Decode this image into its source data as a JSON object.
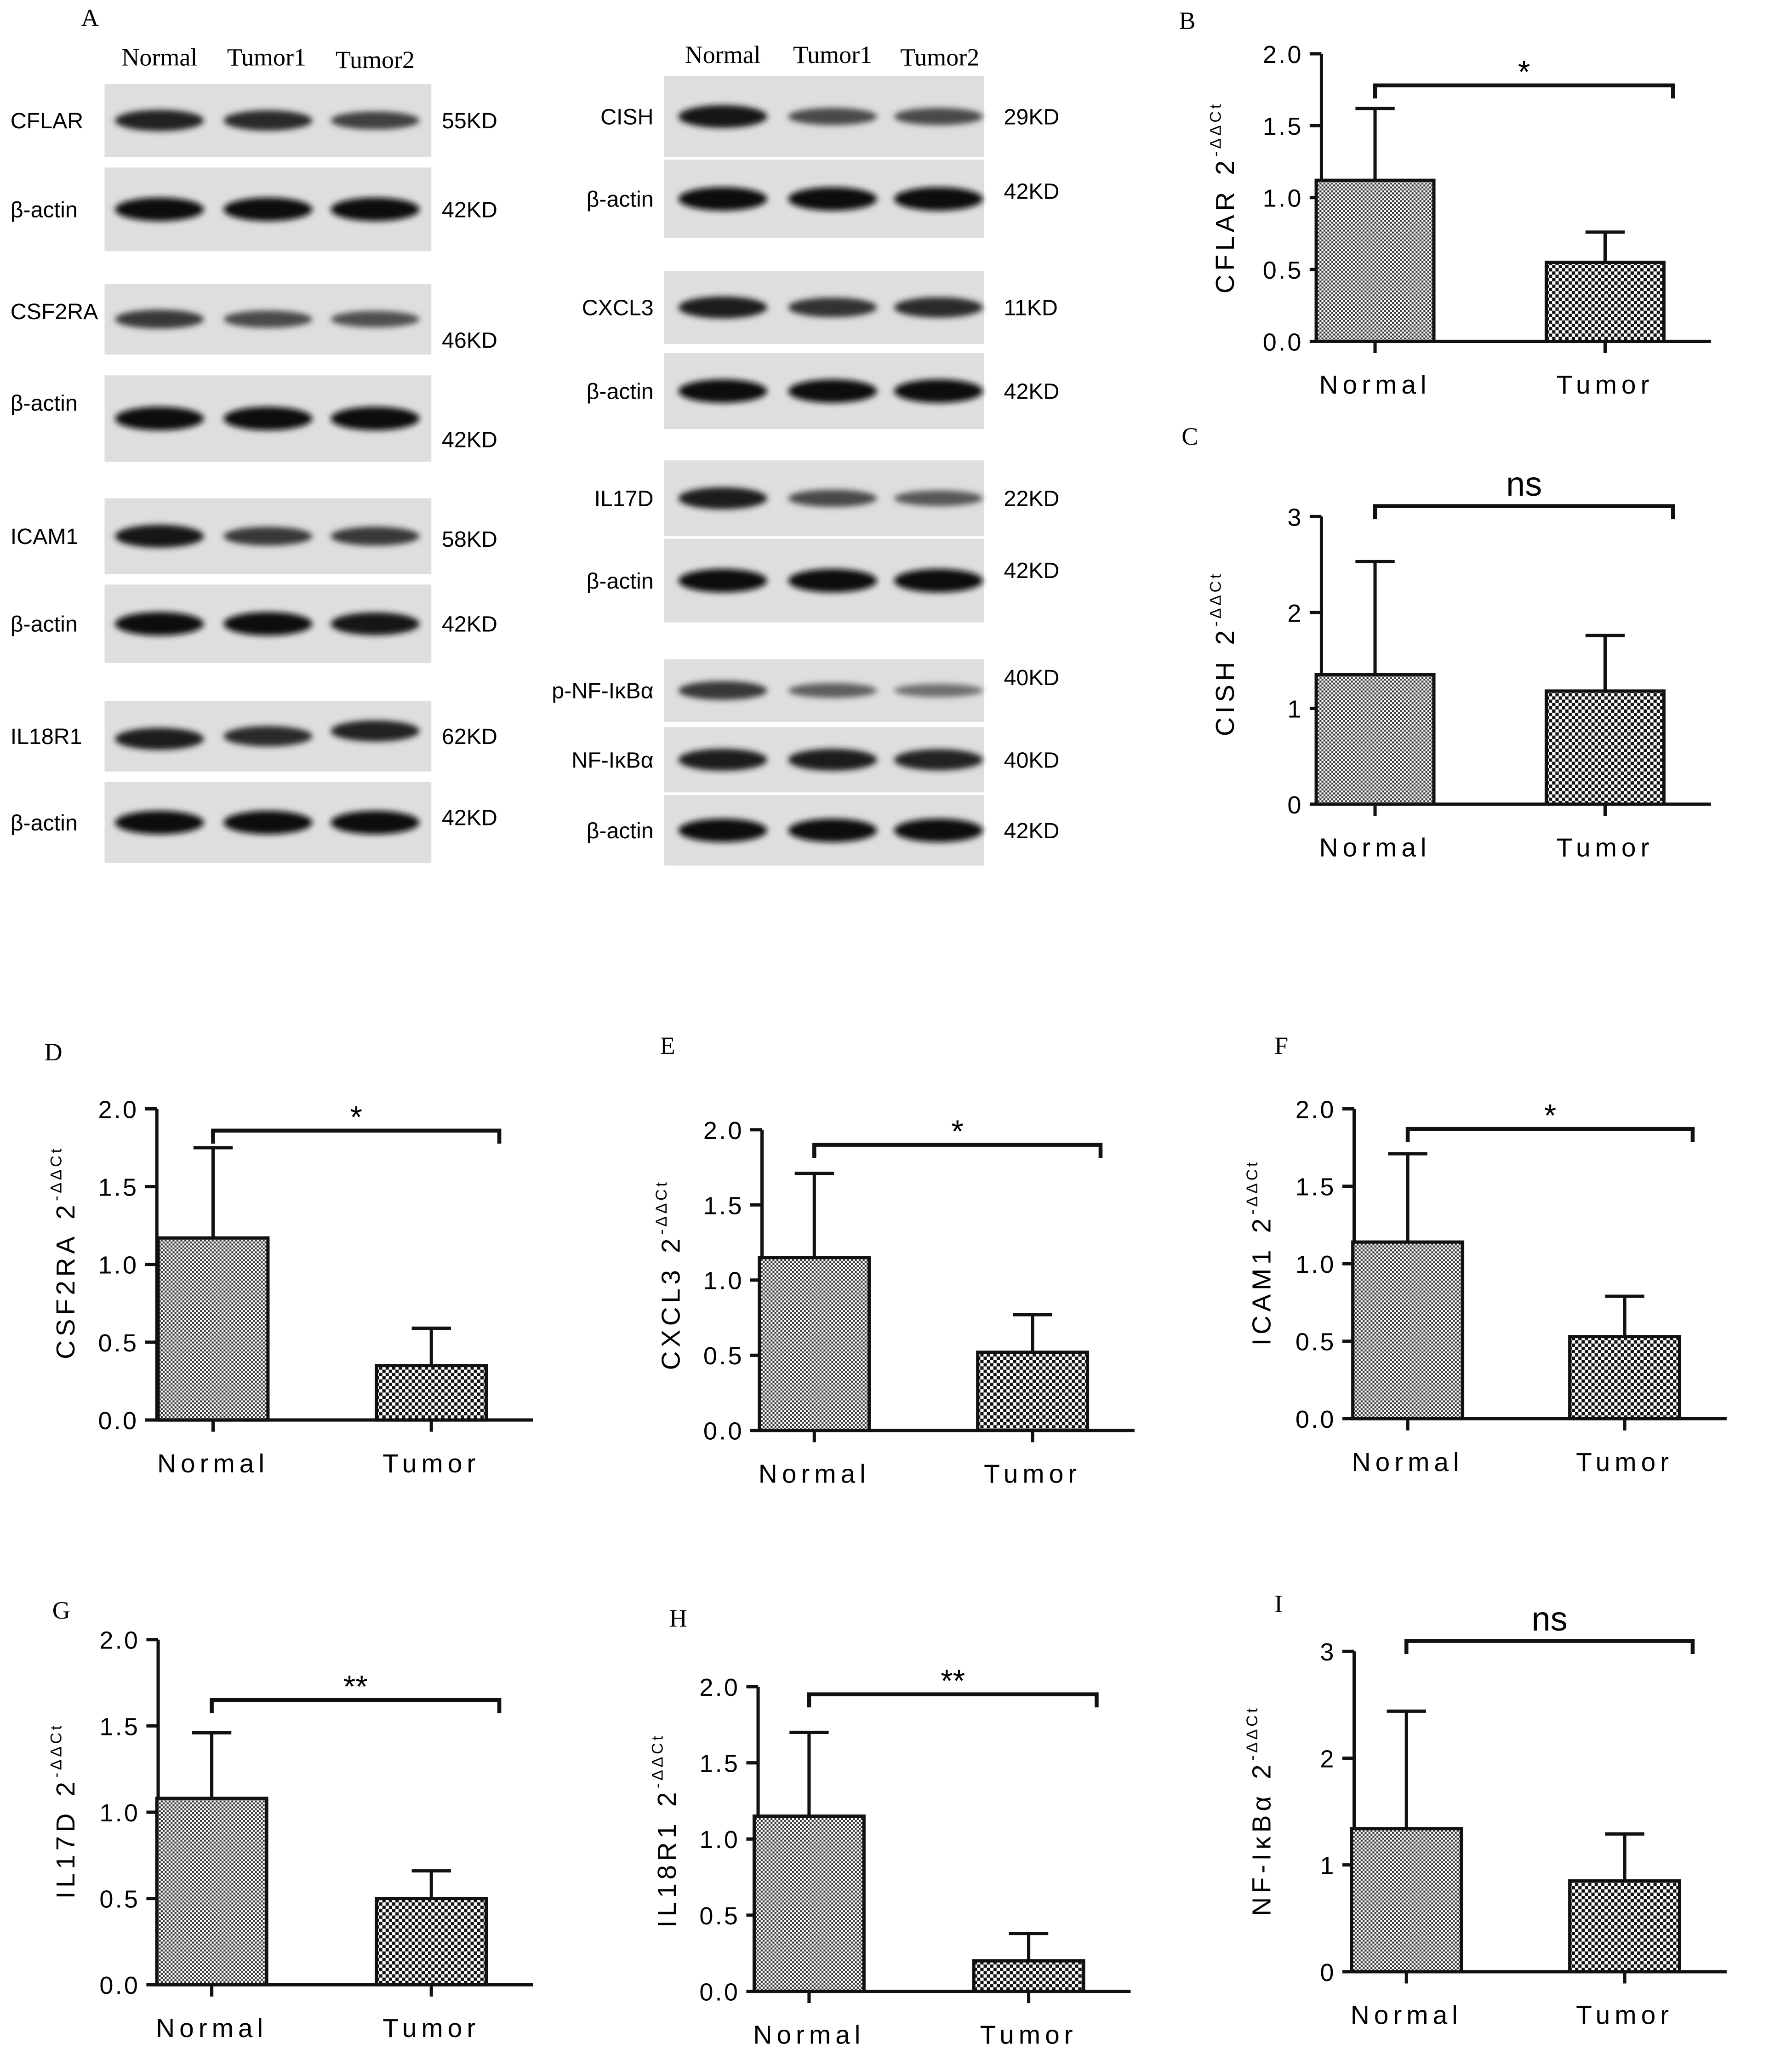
{
  "panel_labels": {
    "A": "A",
    "B": "B",
    "C": "C",
    "D": "D",
    "E": "E",
    "F": "F",
    "G": "G",
    "H": "H",
    "I": "I"
  },
  "western_blot": {
    "left": {
      "lanes": [
        "Normal",
        "Tumor1",
        "Tumor2"
      ],
      "rows": [
        {
          "protein": "CFLAR",
          "size": "55KD",
          "intensity": [
            0.85,
            0.8,
            0.65
          ]
        },
        {
          "protein": "β-actin",
          "size": "42KD",
          "intensity": [
            1.0,
            1.0,
            1.0
          ]
        },
        {
          "protein": "CSF2RA",
          "size": "46KD",
          "intensity": [
            0.7,
            0.6,
            0.55
          ]
        },
        {
          "protein": "β-actin",
          "size": "42KD",
          "intensity": [
            1.0,
            1.0,
            1.0
          ]
        },
        {
          "protein": "ICAM1",
          "size": "58KD",
          "intensity": [
            0.95,
            0.7,
            0.7
          ]
        },
        {
          "protein": "β-actin",
          "size": "42KD",
          "intensity": [
            1.0,
            1.0,
            0.95
          ]
        },
        {
          "protein": "IL18R1",
          "size": "62KD",
          "intensity": [
            0.9,
            0.8,
            0.85
          ]
        },
        {
          "protein": "β-actin",
          "size": "42KD",
          "intensity": [
            1.0,
            1.0,
            1.0
          ]
        }
      ]
    },
    "right": {
      "lanes": [
        "Normal",
        "Tumor1",
        "Tumor2"
      ],
      "rows": [
        {
          "protein": "CISH",
          "size": "29KD",
          "intensity": [
            0.95,
            0.6,
            0.6
          ]
        },
        {
          "protein": "β-actin",
          "size": "42KD",
          "intensity": [
            1.0,
            1.0,
            1.0
          ]
        },
        {
          "protein": "CXCL3",
          "size": "11KD",
          "intensity": [
            0.9,
            0.75,
            0.8
          ]
        },
        {
          "protein": "β-actin",
          "size": "42KD",
          "intensity": [
            1.0,
            1.0,
            1.0
          ]
        },
        {
          "protein": "IL17D",
          "size": "22KD",
          "intensity": [
            0.9,
            0.6,
            0.5
          ]
        },
        {
          "protein": "β-actin",
          "size": "42KD",
          "intensity": [
            1.0,
            1.0,
            1.0
          ]
        },
        {
          "protein": "p-NF-IκBα",
          "size": "40KD",
          "intensity": [
            0.7,
            0.45,
            0.35
          ]
        },
        {
          "protein": "NF-IκBα",
          "size": "40KD",
          "intensity": [
            0.9,
            0.9,
            0.85
          ]
        },
        {
          "protein": "β-actin",
          "size": "42KD",
          "intensity": [
            1.0,
            1.0,
            1.0
          ]
        }
      ]
    }
  },
  "chart_data": [
    {
      "panel": "B",
      "type": "bar",
      "categories": [
        "Normal",
        "Tumor"
      ],
      "values": [
        1.12,
        0.55
      ],
      "errors": [
        0.5,
        0.21
      ],
      "ylabel": "CFLAR",
      "ylabel_sup": "-ΔΔCt",
      "ylim": [
        0,
        2
      ],
      "ticks": [
        "0.0",
        "0.5",
        "1.0",
        "1.5",
        "2.0"
      ],
      "significance": "*"
    },
    {
      "panel": "C",
      "type": "bar",
      "categories": [
        "Normal",
        "Tumor"
      ],
      "values": [
        1.35,
        1.18
      ],
      "errors": [
        1.18,
        0.58
      ],
      "ylabel": "CISH",
      "ylabel_sup": "-ΔΔCt",
      "ylim": [
        0,
        3
      ],
      "ticks": [
        "0",
        "1",
        "2",
        "3"
      ],
      "significance": "ns"
    },
    {
      "panel": "D",
      "type": "bar",
      "categories": [
        "Normal",
        "Tumor"
      ],
      "values": [
        1.17,
        0.35
      ],
      "errors": [
        0.58,
        0.24
      ],
      "ylabel": "CSF2RA",
      "ylabel_sup": "-ΔΔCt",
      "ylim": [
        0,
        2
      ],
      "ticks": [
        "0.0",
        "0.5",
        "1.0",
        "1.5",
        "2.0"
      ],
      "significance": "*"
    },
    {
      "panel": "E",
      "type": "bar",
      "categories": [
        "Normal",
        "Tumor"
      ],
      "values": [
        1.15,
        0.52
      ],
      "errors": [
        0.56,
        0.25
      ],
      "ylabel": "CXCL3",
      "ylabel_sup": "-ΔΔCt",
      "ylim": [
        0,
        2
      ],
      "ticks": [
        "0.0",
        "0.5",
        "1.0",
        "1.5",
        "2.0"
      ],
      "significance": "*"
    },
    {
      "panel": "F",
      "type": "bar",
      "categories": [
        "Normal",
        "Tumor"
      ],
      "values": [
        1.14,
        0.53
      ],
      "errors": [
        0.57,
        0.26
      ],
      "ylabel": "ICAM1",
      "ylabel_sup": "-ΔΔCt",
      "ylim": [
        0,
        2
      ],
      "ticks": [
        "0.0",
        "0.5",
        "1.0",
        "1.5",
        "2.0"
      ],
      "significance": "*"
    },
    {
      "panel": "G",
      "type": "bar",
      "categories": [
        "Normal",
        "Tumor"
      ],
      "values": [
        1.08,
        0.5
      ],
      "errors": [
        0.38,
        0.16
      ],
      "ylabel": "IL17D",
      "ylabel_sup": "-ΔΔCt",
      "ylim": [
        0,
        2
      ],
      "ticks": [
        "0.0",
        "0.5",
        "1.0",
        "1.5",
        "2.0"
      ],
      "significance": "**"
    },
    {
      "panel": "H",
      "type": "bar",
      "categories": [
        "Normal",
        "Tumor"
      ],
      "values": [
        1.15,
        0.2
      ],
      "errors": [
        0.55,
        0.18
      ],
      "ylabel": "IL18R1",
      "ylabel_sup": "-ΔΔCt",
      "ylim": [
        0,
        2
      ],
      "ticks": [
        "0.0",
        "0.5",
        "1.0",
        "1.5",
        "2.0"
      ],
      "significance": "**"
    },
    {
      "panel": "I",
      "type": "bar",
      "categories": [
        "Normal",
        "Tumor"
      ],
      "values": [
        1.34,
        0.85
      ],
      "errors": [
        1.1,
        0.44
      ],
      "ylabel": "NF-IκBα",
      "ylabel_sup": "-ΔΔCt",
      "ylim": [
        0,
        3
      ],
      "ticks": [
        "0",
        "1",
        "2",
        "3"
      ],
      "significance": "ns"
    }
  ]
}
